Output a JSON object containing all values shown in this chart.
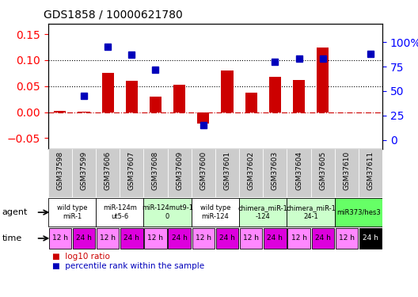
{
  "title": "GDS1858 / 10000621780",
  "samples": [
    "GSM37598",
    "GSM37599",
    "GSM37606",
    "GSM37607",
    "GSM37608",
    "GSM37609",
    "GSM37600",
    "GSM37601",
    "GSM37602",
    "GSM37603",
    "GSM37604",
    "GSM37605",
    "GSM37610",
    "GSM37611"
  ],
  "log10_ratio": [
    0.002,
    0.001,
    0.075,
    0.06,
    0.03,
    0.052,
    -0.022,
    0.08,
    0.038,
    0.068,
    0.062,
    0.125,
    0.0,
    0.0
  ],
  "percentile_rank_pct": [
    null,
    45,
    95,
    87,
    72,
    null,
    15,
    null,
    null,
    80,
    83,
    83,
    null,
    88
  ],
  "agents": [
    {
      "label": "wild type\nmiR-1",
      "cols": [
        0,
        1
      ],
      "color": "#ffffff"
    },
    {
      "label": "miR-124m\nut5-6",
      "cols": [
        2,
        3
      ],
      "color": "#ffffff"
    },
    {
      "label": "miR-124mut9-1\n0",
      "cols": [
        4,
        5
      ],
      "color": "#ccffcc"
    },
    {
      "label": "wild type\nmiR-124",
      "cols": [
        6,
        7
      ],
      "color": "#ffffff"
    },
    {
      "label": "chimera_miR-1\n-124",
      "cols": [
        8,
        9
      ],
      "color": "#ccffcc"
    },
    {
      "label": "chimera_miR-1\n24-1",
      "cols": [
        10,
        11
      ],
      "color": "#ccffcc"
    },
    {
      "label": "miR373/hes3",
      "cols": [
        12,
        13
      ],
      "color": "#66ff66"
    }
  ],
  "time_labels": [
    "12 h",
    "24 h",
    "12 h",
    "24 h",
    "12 h",
    "24 h",
    "12 h",
    "24 h",
    "12 h",
    "24 h",
    "12 h",
    "24 h",
    "12 h",
    "24 h"
  ],
  "ylim_left": [
    -0.07,
    0.17
  ],
  "ylim_right": [
    -8.75,
    118.75
  ],
  "yticks_left": [
    -0.05,
    0.0,
    0.05,
    0.1,
    0.15
  ],
  "yticks_right": [
    0,
    25,
    50,
    75,
    100
  ],
  "bar_color": "#cc0000",
  "dot_color": "#0000bb",
  "bar_width": 0.5,
  "dot_size": 6,
  "background_plot": "#ffffff",
  "sample_label_bg": "#cccccc",
  "agent_row_white": "#ffffff",
  "agent_row_lightgreen": "#ccffcc",
  "agent_row_green": "#66ff66",
  "time_light_pink": "#ff88ff",
  "time_dark_magenta": "#dd00dd"
}
